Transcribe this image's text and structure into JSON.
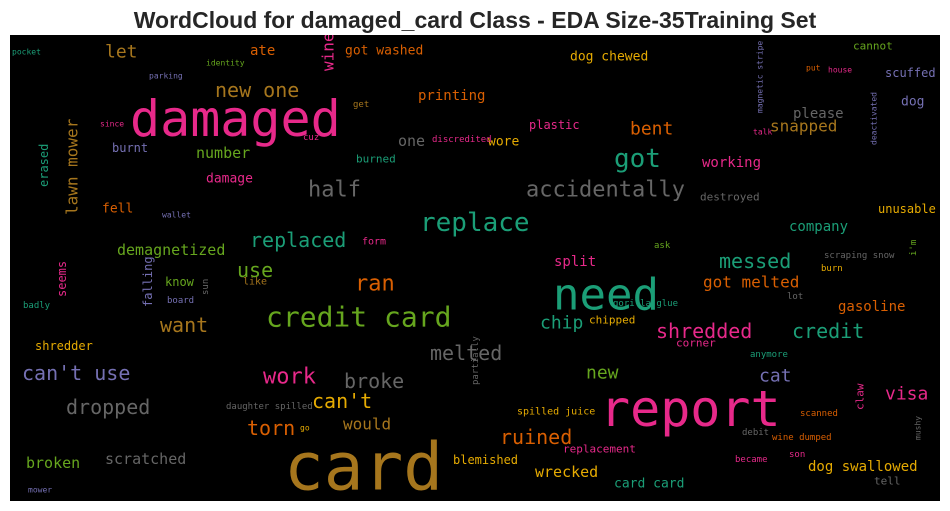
{
  "title": "WordCloud for damaged_card Class - EDA Size-35Training Set",
  "chart_data": {
    "type": "wordcloud",
    "background": "#000000",
    "palette": {
      "pink": "#e7298a",
      "green": "#1b9e77",
      "olive": "#66a61e",
      "gold": "#a6761d",
      "orange": "#d95f02",
      "purple": "#7570b3",
      "yellow": "#e6ab02",
      "gray": "#666666"
    },
    "words": [
      {
        "text": "card",
        "color": "gold"
      },
      {
        "text": "damaged",
        "color": "pink"
      },
      {
        "text": "report",
        "color": "pink"
      },
      {
        "text": "need",
        "color": "green"
      },
      {
        "text": "credit card",
        "color": "olive"
      },
      {
        "text": "replace",
        "color": "green"
      },
      {
        "text": "got",
        "color": "green"
      },
      {
        "text": "accidentally",
        "color": "gray"
      },
      {
        "text": "half",
        "color": "gray"
      },
      {
        "text": "replaced",
        "color": "green"
      },
      {
        "text": "new one",
        "color": "gold"
      },
      {
        "text": "shredded",
        "color": "pink"
      },
      {
        "text": "credit",
        "color": "green"
      },
      {
        "text": "messed",
        "color": "green"
      },
      {
        "text": "want",
        "color": "gold"
      },
      {
        "text": "melted",
        "color": "gray"
      },
      {
        "text": "work",
        "color": "pink"
      },
      {
        "text": "broke",
        "color": "gray"
      },
      {
        "text": "can't use",
        "color": "purple"
      },
      {
        "text": "dropped",
        "color": "gray"
      },
      {
        "text": "ran",
        "color": "orange"
      },
      {
        "text": "can't",
        "color": "yellow"
      },
      {
        "text": "use",
        "color": "olive"
      },
      {
        "text": "torn",
        "color": "orange"
      },
      {
        "text": "ruined",
        "color": "orange"
      },
      {
        "text": "chip",
        "color": "green"
      },
      {
        "text": "lawn mower",
        "color": "gold"
      },
      {
        "text": "bent",
        "color": "orange"
      },
      {
        "text": "got melted",
        "color": "orange"
      },
      {
        "text": "wine",
        "color": "pink"
      },
      {
        "text": "let",
        "color": "gold"
      },
      {
        "text": "snapped",
        "color": "gold"
      },
      {
        "text": "new",
        "color": "olive"
      },
      {
        "text": "cat",
        "color": "purple"
      },
      {
        "text": "visa",
        "color": "pink"
      },
      {
        "text": "would",
        "color": "gold"
      },
      {
        "text": "broken",
        "color": "olive"
      },
      {
        "text": "scratched",
        "color": "gray"
      },
      {
        "text": "wrecked",
        "color": "yellow"
      },
      {
        "text": "dog swallowed",
        "color": "yellow"
      },
      {
        "text": "card card",
        "color": "green"
      },
      {
        "text": "demagnetized",
        "color": "olive"
      },
      {
        "text": "number",
        "color": "olive"
      },
      {
        "text": "printing",
        "color": "orange"
      },
      {
        "text": "working",
        "color": "pink"
      },
      {
        "text": "gasoline",
        "color": "orange"
      },
      {
        "text": "company",
        "color": "green"
      },
      {
        "text": "split",
        "color": "pink"
      },
      {
        "text": "ate",
        "color": "orange"
      },
      {
        "text": "one",
        "color": "gray"
      },
      {
        "text": "dog chewed",
        "color": "yellow"
      },
      {
        "text": "got washed",
        "color": "orange"
      },
      {
        "text": "please",
        "color": "gray"
      },
      {
        "text": "dog",
        "color": "purple"
      },
      {
        "text": "wore",
        "color": "yellow"
      },
      {
        "text": "damage",
        "color": "pink"
      },
      {
        "text": "fell",
        "color": "orange"
      },
      {
        "text": "erased",
        "color": "green"
      },
      {
        "text": "seems",
        "color": "pink"
      },
      {
        "text": "falling",
        "color": "purple"
      },
      {
        "text": "know",
        "color": "olive"
      },
      {
        "text": "shredder",
        "color": "yellow"
      },
      {
        "text": "blemished",
        "color": "yellow"
      },
      {
        "text": "plastic",
        "color": "pink"
      },
      {
        "text": "burnt",
        "color": "purple"
      },
      {
        "text": "burned",
        "color": "green"
      },
      {
        "text": "chipped",
        "color": "yellow"
      },
      {
        "text": "destroyed",
        "color": "gray"
      },
      {
        "text": "unusable",
        "color": "yellow"
      },
      {
        "text": "scuffed",
        "color": "purple"
      },
      {
        "text": "cannot",
        "color": "olive"
      },
      {
        "text": "claw",
        "color": "pink"
      },
      {
        "text": "tell",
        "color": "gray"
      },
      {
        "text": "corner",
        "color": "pink"
      },
      {
        "text": "replacement",
        "color": "pink"
      },
      {
        "text": "spilled juice",
        "color": "yellow"
      },
      {
        "text": "partially",
        "color": "gray"
      },
      {
        "text": "daughter spilled",
        "color": "gray"
      },
      {
        "text": "form",
        "color": "pink"
      },
      {
        "text": "like",
        "color": "gold"
      },
      {
        "text": "board",
        "color": "purple"
      },
      {
        "text": "sun",
        "color": "gray"
      },
      {
        "text": "gorilla glue",
        "color": "green"
      },
      {
        "text": "lot",
        "color": "gray"
      },
      {
        "text": "ask",
        "color": "olive"
      },
      {
        "text": "scraping snow",
        "color": "gray"
      },
      {
        "text": "burn",
        "color": "yellow"
      },
      {
        "text": "i'm",
        "color": "olive"
      },
      {
        "text": "anymore",
        "color": "green"
      },
      {
        "text": "scanned",
        "color": "orange"
      },
      {
        "text": "debit",
        "color": "gray"
      },
      {
        "text": "wine dumped",
        "color": "orange"
      },
      {
        "text": "became",
        "color": "pink"
      },
      {
        "text": "son",
        "color": "pink"
      },
      {
        "text": "mushy",
        "color": "gray"
      },
      {
        "text": "go",
        "color": "yellow"
      },
      {
        "text": "badly",
        "color": "green"
      },
      {
        "text": "mower",
        "color": "purple"
      },
      {
        "text": "wallet",
        "color": "purple"
      },
      {
        "text": "pocket",
        "color": "green"
      },
      {
        "text": "parking",
        "color": "purple"
      },
      {
        "text": "identity",
        "color": "olive"
      },
      {
        "text": "since",
        "color": "pink"
      },
      {
        "text": "cuz",
        "color": "pink"
      },
      {
        "text": "get",
        "color": "gold"
      },
      {
        "text": "discredited",
        "color": "pink"
      },
      {
        "text": "magnetic stripe",
        "color": "purple"
      },
      {
        "text": "talk",
        "color": "pink"
      },
      {
        "text": "deactivated",
        "color": "purple"
      },
      {
        "text": "put",
        "color": "orange"
      },
      {
        "text": "house",
        "color": "pink"
      }
    ]
  }
}
